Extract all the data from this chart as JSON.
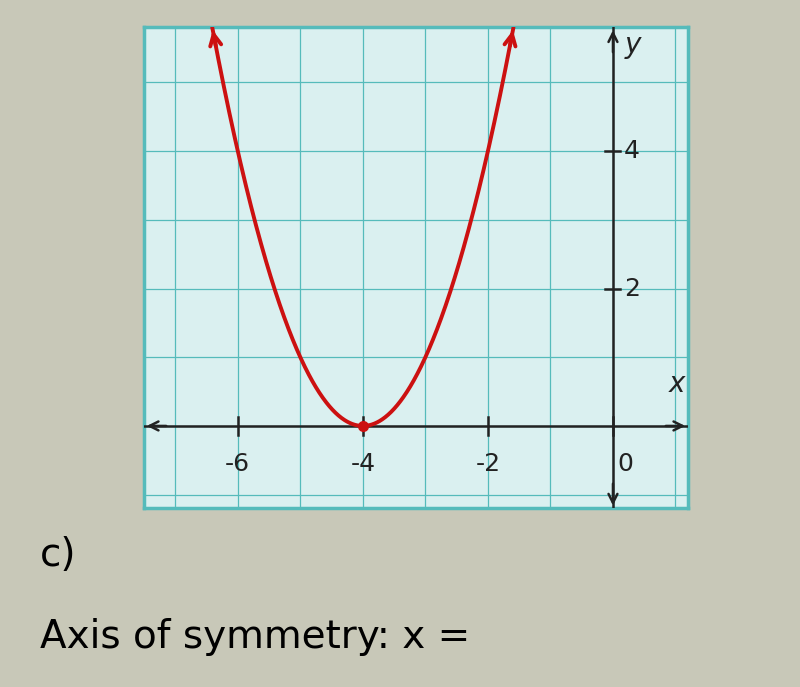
{
  "xlabel": "x",
  "ylabel": "y",
  "xlim": [
    -7.5,
    1.2
  ],
  "ylim": [
    -1.2,
    5.8
  ],
  "x_ticks": [
    -6,
    -4,
    -2,
    0
  ],
  "y_ticks": [
    2,
    4
  ],
  "vertex_x": -4,
  "vertex_y": 0,
  "parabola_a": 1.0,
  "curve_color": "#cc1111",
  "grid_color": "#55bbbb",
  "axis_color": "#222222",
  "background_color": "#daf0f0",
  "outer_bg": "#c8c8b8",
  "label_c": "c)",
  "label_axis": "Axis of symmetry: x =",
  "label_fontsize": 28,
  "tick_fontsize": 18
}
